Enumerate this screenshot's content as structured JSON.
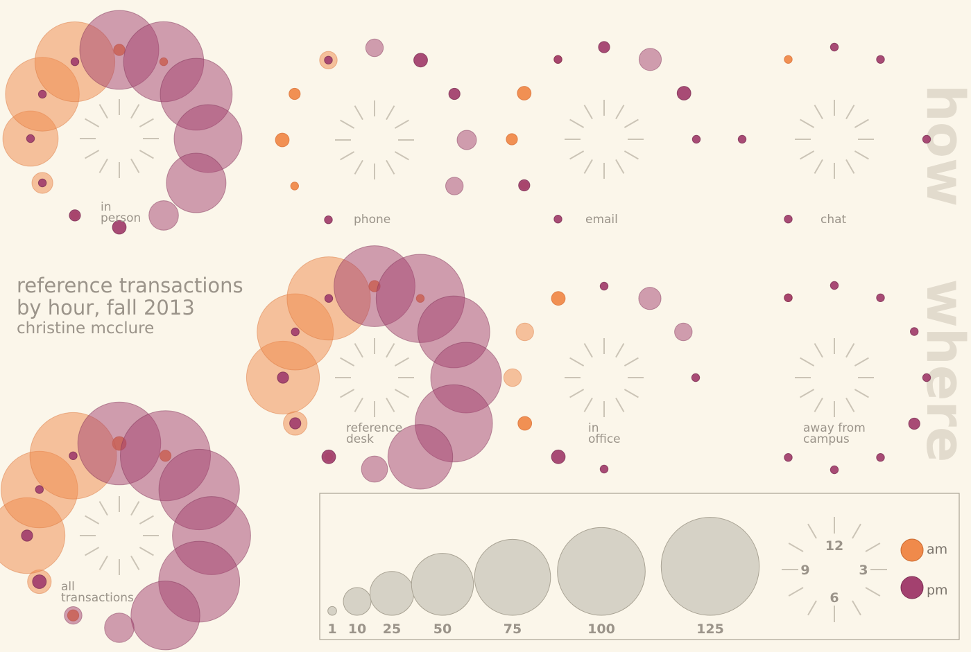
{
  "title": {
    "line1": "reference transactions",
    "line2": "by hour, fall 2013",
    "author": "christine mcclure"
  },
  "side_labels": {
    "how": "how",
    "where": "where"
  },
  "colors": {
    "am": "#f08a4b",
    "pm": "#a3416f",
    "ray": "#cbc4b6",
    "legend_fill": "#d6d2c6",
    "text": "#9b948a"
  },
  "legend": {
    "sizes": [
      1,
      10,
      25,
      50,
      75,
      100,
      125
    ],
    "clock_labels": {
      "12": "12",
      "3": "3",
      "6": "6",
      "9": "9"
    },
    "am_label": "am",
    "pm_label": "pm"
  },
  "chart_data": {
    "type": "radial-bubble",
    "unit": "transactions per hour",
    "hours": [
      12,
      1,
      2,
      3,
      4,
      5,
      6,
      7,
      8,
      9,
      10,
      11
    ],
    "panels": [
      {
        "id": "in-person",
        "group": "how",
        "label_lines": [
          "in",
          "person"
        ],
        "am": [
          2,
          1,
          0,
          0,
          0,
          0,
          0,
          1,
          7,
          49,
          87,
          102
        ],
        "pm": [
          100,
          103,
          83,
          74,
          57,
          14,
          3,
          2,
          1,
          1,
          1,
          1
        ]
      },
      {
        "id": "phone",
        "group": "how",
        "label_lines": [
          "phone"
        ],
        "am": [
          0,
          0,
          0,
          0,
          0,
          0,
          0,
          0,
          1,
          3,
          2,
          5
        ],
        "pm": [
          5,
          3,
          2,
          6,
          5,
          0,
          0,
          1,
          0,
          0,
          0,
          1
        ]
      },
      {
        "id": "email",
        "group": "how",
        "label_lines": [
          "email"
        ],
        "am": [
          0,
          0,
          0,
          0,
          0,
          0,
          0,
          0,
          1,
          2,
          3,
          1
        ],
        "pm": [
          2,
          8,
          3,
          1,
          0,
          0,
          0,
          1,
          2,
          0,
          0,
          1
        ]
      },
      {
        "id": "chat",
        "group": "how",
        "label_lines": [
          "chat"
        ],
        "am": [
          0,
          0,
          0,
          0,
          0,
          0,
          0,
          0,
          0,
          0,
          0,
          1
        ],
        "pm": [
          1,
          1,
          0,
          1,
          0,
          0,
          0,
          1,
          0,
          1,
          0,
          0
        ]
      },
      {
        "id": "reference-desk",
        "group": "where",
        "label_lines": [
          "reference",
          "desk"
        ],
        "am": [
          2,
          1,
          0,
          0,
          0,
          0,
          0,
          1,
          9,
          85,
          93,
          111
        ],
        "pm": [
          105,
          125,
          83,
          80,
          96,
          67,
          11,
          3,
          2,
          2,
          1,
          1
        ]
      },
      {
        "id": "in-office",
        "group": "where",
        "label_lines": [
          "in",
          "office"
        ],
        "am": [
          0,
          0,
          0,
          0,
          0,
          0,
          0,
          0,
          3,
          5,
          5,
          3
        ],
        "pm": [
          1,
          8,
          5,
          1,
          0,
          0,
          1,
          3,
          0,
          0,
          0,
          0
        ]
      },
      {
        "id": "away-from-campus",
        "group": "where",
        "label_lines": [
          "away from",
          "campus"
        ],
        "am": [
          0,
          0,
          0,
          0,
          0,
          0,
          0,
          0,
          0,
          0,
          0,
          1
        ],
        "pm": [
          1,
          1,
          1,
          1,
          2,
          1,
          1,
          1,
          0,
          0,
          0,
          1
        ]
      },
      {
        "id": "all-transactions",
        "group": "all",
        "label_lines": [
          "all",
          "transactions"
        ],
        "am": [
          3,
          2,
          0,
          0,
          0,
          0,
          0,
          2,
          9,
          92,
          94,
          120
        ],
        "pm": [
          110,
          130,
          104,
          98,
          105,
          76,
          14,
          5,
          3,
          2,
          1,
          1
        ]
      }
    ]
  }
}
